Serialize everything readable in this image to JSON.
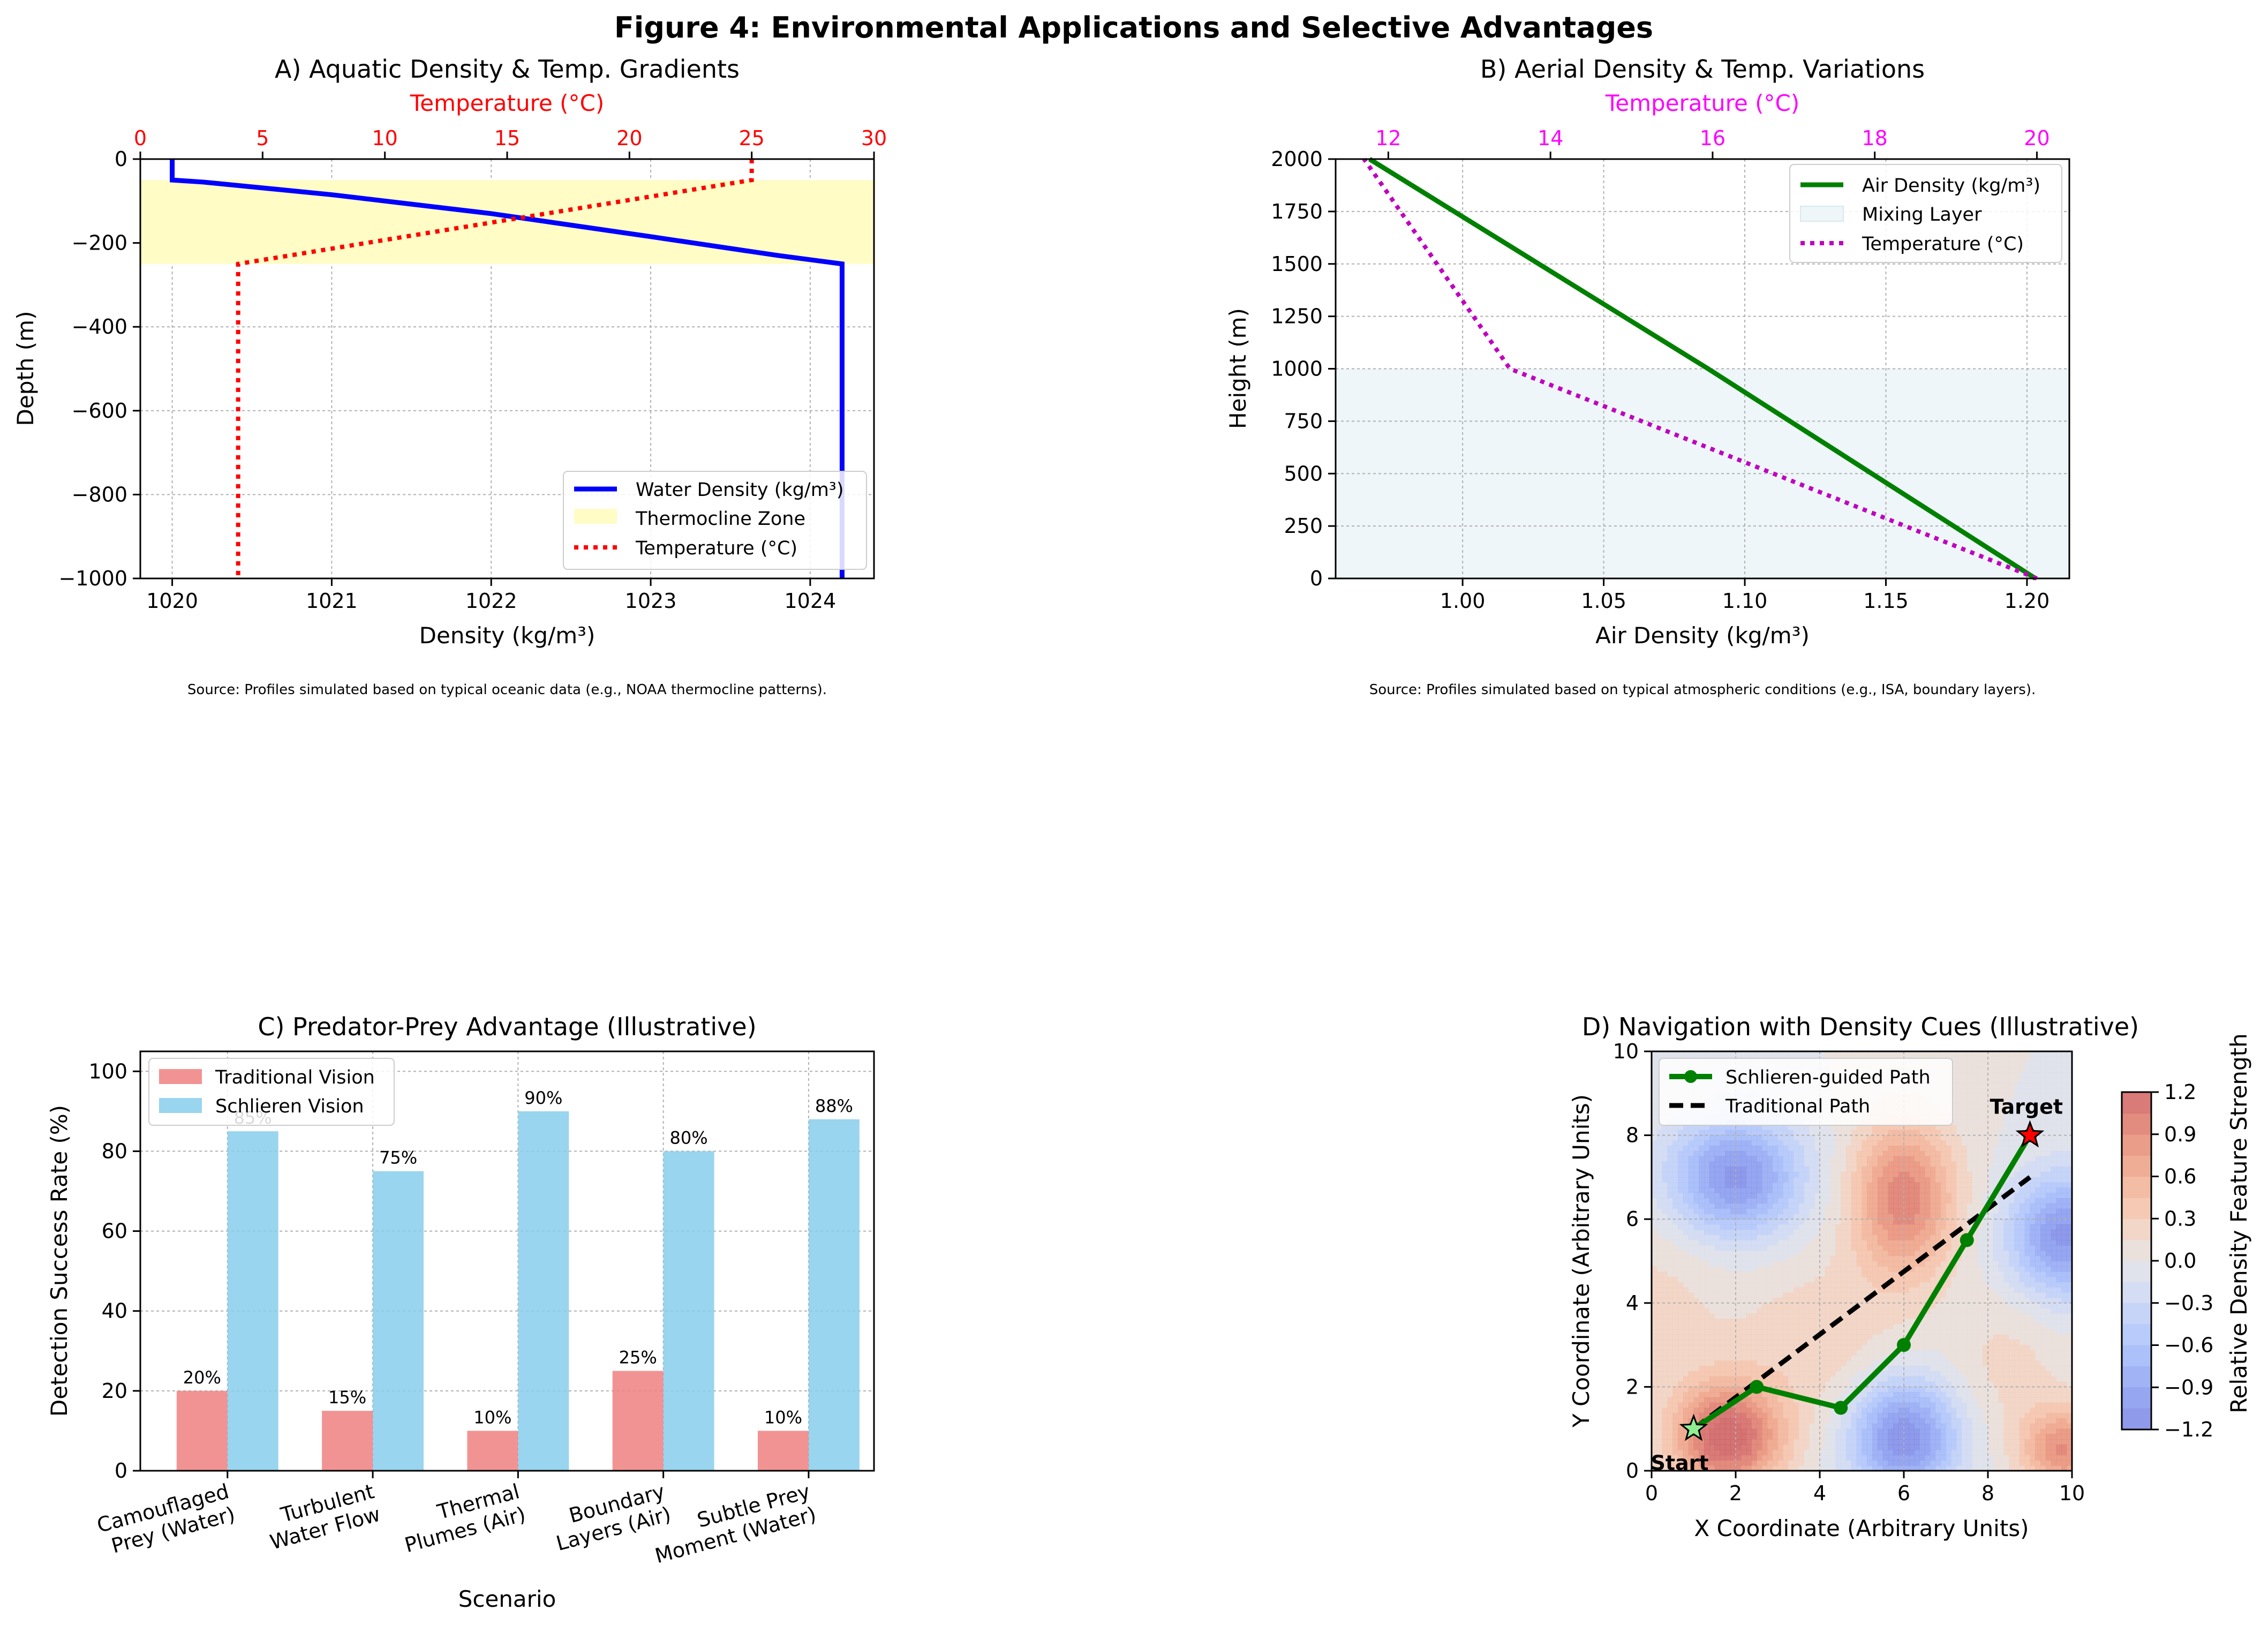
{
  "figure": {
    "title": "Figure 4: Environmental Applications and Selective Advantages"
  },
  "chart_data": [
    {
      "id": "A",
      "type": "line",
      "title": "A) Aquatic Density & Temp. Gradients",
      "xlabel": "Density (kg/m³)",
      "ylabel": "Depth (m)",
      "x2label": "Temperature (°C)",
      "xlim": [
        1019.8,
        1024.4
      ],
      "ylim": [
        -1000,
        0
      ],
      "x2lim": [
        0,
        30
      ],
      "xticks": [
        1020,
        1021,
        1022,
        1023,
        1024
      ],
      "yticks": [
        0,
        -200,
        -400,
        -600,
        -800,
        -1000
      ],
      "yticklabels": [
        "0",
        "−200",
        "−400",
        "−600",
        "−800",
        "−1000"
      ],
      "x2ticks": [
        0,
        5,
        10,
        15,
        20,
        25,
        30
      ],
      "grid": true,
      "legend_position": "lower-right",
      "band": {
        "name": "Thermocline Zone",
        "y": [
          -250,
          -50
        ],
        "color": "#fffcc6"
      },
      "series": [
        {
          "name": "Water Density (kg/m³)",
          "axis": "bottom",
          "color": "#0000ff",
          "style": "solid",
          "x": [
            1020.0,
            1020.0,
            1020.2,
            1021.0,
            1022.0,
            1023.0,
            1023.8,
            1024.2,
            1024.2
          ],
          "y": [
            0,
            -50,
            -55,
            -85,
            -130,
            -185,
            -230,
            -250,
            -1000
          ]
        },
        {
          "name": "Temperature (°C)",
          "axis": "top",
          "color": "#ff0000",
          "style": "dotted",
          "x": [
            25,
            25,
            4,
            4
          ],
          "y": [
            0,
            -50,
            -250,
            -1000
          ]
        }
      ],
      "source": "Source: Profiles simulated based on typical oceanic data (e.g., NOAA thermocline patterns)."
    },
    {
      "id": "B",
      "type": "line",
      "title": "B) Aerial Density & Temp. Variations",
      "xlabel": "Air Density (kg/m³)",
      "ylabel": "Height (m)",
      "x2label": "Temperature (°C)",
      "xlim": [
        0.955,
        1.215
      ],
      "ylim": [
        0,
        2000
      ],
      "x2lim": [
        11.35,
        20.4
      ],
      "xticks": [
        1.0,
        1.05,
        1.1,
        1.15,
        1.2
      ],
      "xticklabels": [
        "1.00",
        "1.05",
        "1.10",
        "1.15",
        "1.20"
      ],
      "yticks": [
        0,
        250,
        500,
        750,
        1000,
        1250,
        1500,
        1750,
        2000
      ],
      "x2ticks": [
        12,
        14,
        16,
        18,
        20
      ],
      "grid": true,
      "legend_position": "upper-right",
      "band": {
        "name": "Mixing Layer",
        "y": [
          0,
          1000
        ],
        "color": "#eef6f9"
      },
      "series": [
        {
          "name": "Air Density (kg/m³)",
          "axis": "bottom",
          "color": "#008000",
          "style": "solid",
          "x": [
            1.203,
            1.087,
            0.967
          ],
          "y": [
            0,
            1000,
            2000
          ]
        },
        {
          "name": "Temperature (°C)",
          "axis": "top",
          "color": "#bf00bf",
          "style": "dotted",
          "x": [
            20.0,
            13.5,
            11.7
          ],
          "y": [
            0,
            1000,
            2000
          ]
        }
      ],
      "source": "Source: Profiles simulated based on typical atmospheric conditions (e.g., ISA, boundary layers)."
    },
    {
      "id": "C",
      "type": "bar",
      "title": "C) Predator-Prey Advantage (Illustrative)",
      "xlabel": "Scenario",
      "ylabel": "Detection Success Rate (%)",
      "ylim": [
        0,
        105
      ],
      "yticks": [
        0,
        20,
        40,
        60,
        80,
        100
      ],
      "grid": true,
      "legend_position": "upper-left",
      "categories": [
        "Camouflaged\nPrey (Water)",
        "Turbulent\nWater Flow",
        "Thermal\nPlumes (Air)",
        "Boundary\nLayers (Air)",
        "Subtle Prey\nMoment (Water)"
      ],
      "series": [
        {
          "name": "Traditional Vision",
          "color": "#f08080",
          "values": [
            20,
            15,
            10,
            25,
            10
          ],
          "labels": [
            "20%",
            "15%",
            "10%",
            "25%",
            "10%"
          ]
        },
        {
          "name": "Schlieren Vision",
          "color": "#87ceeb",
          "values": [
            85,
            75,
            90,
            80,
            88
          ],
          "labels": [
            "85%",
            "75%",
            "90%",
            "80%",
            "88%"
          ]
        }
      ]
    },
    {
      "id": "D",
      "type": "heatmap",
      "title": "D) Navigation with Density Cues (Illustrative)",
      "xlabel": "X Coordinate (Arbitrary Units)",
      "ylabel": "Y Coordinate (Arbitrary Units)",
      "xlim": [
        0,
        10
      ],
      "ylim": [
        0,
        10
      ],
      "xticks": [
        0,
        2,
        4,
        6,
        8,
        10
      ],
      "yticks": [
        0,
        2,
        4,
        6,
        8,
        10
      ],
      "grid": true,
      "legend_position": "upper-left",
      "colormap": "coolwarm",
      "colorbar": {
        "label": "Relative Density Feature Strength",
        "range": [
          -1.2,
          1.2
        ],
        "ticks": [
          1.2,
          0.9,
          0.6,
          0.3,
          0.0,
          -0.3,
          -0.6,
          -0.9,
          -1.2
        ],
        "ticklabels": [
          "1.2",
          "0.9",
          "0.6",
          "0.3",
          "0.0",
          "−0.3",
          "−0.6",
          "−0.9",
          "−1.2"
        ]
      },
      "features": [
        {
          "x": 2.0,
          "y": 7.0,
          "amp": -1.1,
          "sx": 1.1,
          "sy": 1.0
        },
        {
          "x": 6.0,
          "y": 6.5,
          "amp": 1.0,
          "sx": 0.85,
          "sy": 1.3
        },
        {
          "x": 9.8,
          "y": 5.6,
          "amp": -1.1,
          "sx": 0.9,
          "sy": 1.0
        },
        {
          "x": 1.8,
          "y": 0.8,
          "amp": 1.3,
          "sx": 0.9,
          "sy": 0.9
        },
        {
          "x": 6.0,
          "y": 0.8,
          "amp": -1.2,
          "sx": 0.9,
          "sy": 1.0
        },
        {
          "x": 9.8,
          "y": 0.5,
          "amp": 0.9,
          "sx": 0.7,
          "sy": 0.7
        },
        {
          "x": 4.0,
          "y": 3.0,
          "amp": 0.25,
          "sx": 1.5,
          "sy": 1.5
        },
        {
          "x": 0.0,
          "y": 4.0,
          "amp": 0.2,
          "sx": 1.2,
          "sy": 1.5
        },
        {
          "x": 8.5,
          "y": 2.5,
          "amp": 0.2,
          "sx": 1.0,
          "sy": 1.2
        }
      ],
      "series": [
        {
          "name": "Schlieren-guided Path",
          "color": "#008000",
          "style": "solid-markers",
          "x": [
            1,
            2.5,
            4.5,
            6,
            7.5,
            9
          ],
          "y": [
            1,
            2,
            1.5,
            3,
            5.5,
            8
          ]
        },
        {
          "name": "Traditional Path",
          "color": "#000000",
          "style": "dashed",
          "x": [
            1,
            9
          ],
          "y": [
            1,
            7
          ]
        }
      ],
      "markers": [
        {
          "label": "Start",
          "x": 1,
          "y": 1,
          "color": "#90ee90"
        },
        {
          "label": "Target",
          "x": 9,
          "y": 8,
          "color": "#ff0000"
        }
      ]
    }
  ]
}
